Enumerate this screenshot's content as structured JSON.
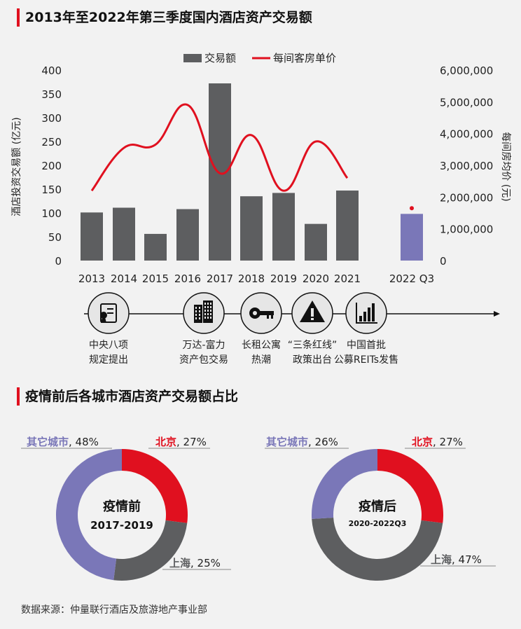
{
  "chart_data": [
    {
      "type": "bar+line",
      "title": "2013年至2022年第三季度国内酒店资产交易额",
      "categories": [
        "2013",
        "2014",
        "2015",
        "2016",
        "2017",
        "2018",
        "2019",
        "2020",
        "2021",
        "2022 Q3"
      ],
      "series": [
        {
          "name": "交易额",
          "kind": "bar",
          "axis": "left",
          "color": "#5d5e60",
          "highlight_color": "#7a77b8",
          "values": [
            101,
            111,
            56,
            108,
            372,
            135,
            142,
            77,
            147,
            98
          ]
        },
        {
          "name": "每间客房单价",
          "kind": "line",
          "axis": "right",
          "color": "#e0101f",
          "values": [
            2200000,
            3550000,
            3650000,
            4900000,
            2750000,
            3950000,
            2200000,
            3750000,
            2600000,
            1650000
          ]
        }
      ],
      "ylabel": "酒店投资交易额 (亿元)",
      "ylim": [
        0,
        400
      ],
      "yticks": [
        "0",
        "50",
        "100",
        "150",
        "200",
        "250",
        "300",
        "350",
        "400"
      ],
      "y2label": "每间房均价 (元)",
      "y2lim": [
        0,
        6000000
      ],
      "y2ticks": [
        "0",
        "1,000,000",
        "2,000,000",
        "3,000,000",
        "4,000,000",
        "5,000,000",
        "6,000,000"
      ],
      "legend_position": "top-center",
      "grid": false
    },
    {
      "type": "pie",
      "title": "疫情前各城市酒店资产交易额占比",
      "center_label": "疫情前",
      "center_sublabel": "2017-2019",
      "labels": [
        "北京",
        "上海",
        "其它城市"
      ],
      "values": [
        27,
        25,
        48
      ],
      "colors": [
        "#e0101f",
        "#5d5e60",
        "#7a77b8"
      ]
    },
    {
      "type": "pie",
      "title": "疫情后各城市酒店资产交易额占比",
      "center_label": "疫情后",
      "center_sublabel": "2020-2022Q3",
      "labels": [
        "北京",
        "上海",
        "其它城市"
      ],
      "values": [
        27,
        47,
        26
      ],
      "colors": [
        "#e0101f",
        "#5d5e60",
        "#7a77b8"
      ]
    }
  ],
  "section2_title": "疫情前后各城市酒店资产交易额占比",
  "timeline": [
    {
      "icon": "certificate-icon",
      "line1": "中央八项",
      "line2": "规定提出"
    },
    {
      "icon": "building-icon",
      "line1": "万达-富力",
      "line2": "资产包交易"
    },
    {
      "icon": "key-icon",
      "line1": "长租公寓",
      "line2": "热潮"
    },
    {
      "icon": "warning-icon",
      "line1": "“三条红线”",
      "line2": "政策出台"
    },
    {
      "icon": "bar-chart-icon",
      "line1": "中国首批",
      "line2": "公募REITs发售"
    }
  ],
  "pie_value_labels": {
    "before": [
      "27%",
      "25%",
      "48%"
    ],
    "after": [
      "27%",
      "47%",
      "26%"
    ]
  },
  "source": "数据来源：仲量联行酒店及旅游地产事业部"
}
